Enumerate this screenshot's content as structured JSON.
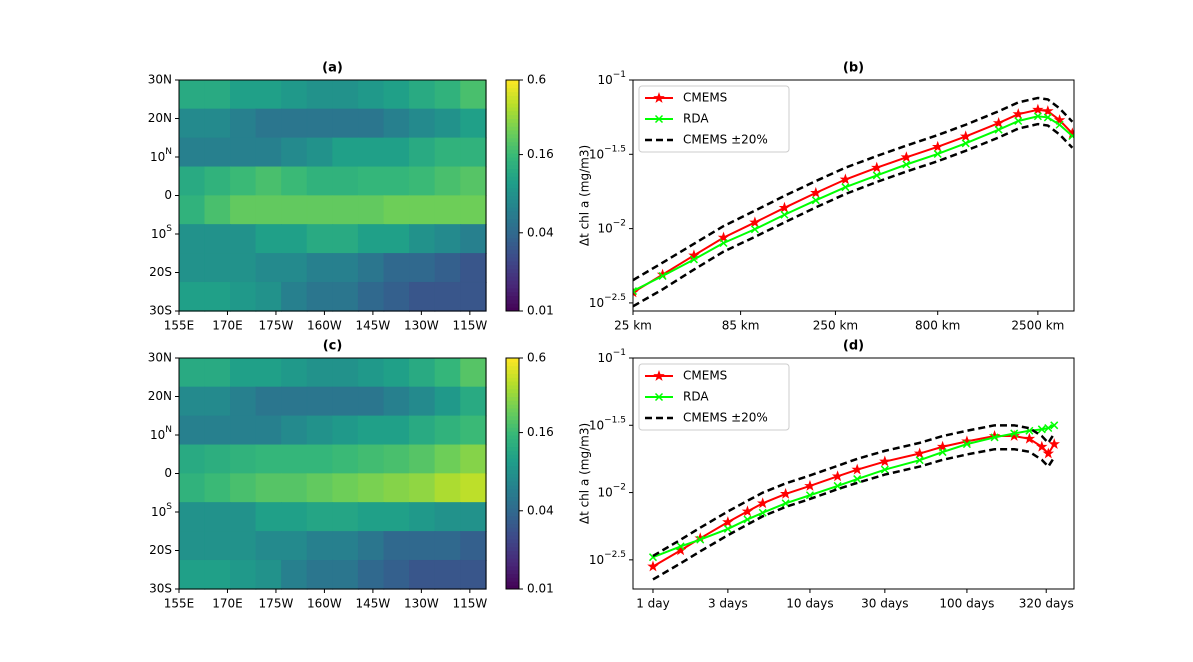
{
  "chart_data": [
    {
      "type": "heatmap",
      "title": "(a)",
      "xlim": [
        155,
        250
      ],
      "xticks": [
        {
          "value": 155,
          "label": "155E"
        },
        {
          "value": 170,
          "label": "170E"
        },
        {
          "value": 185,
          "label": "175W"
        },
        {
          "value": 200,
          "label": "160W"
        },
        {
          "value": 215,
          "label": "145W"
        },
        {
          "value": 230,
          "label": "130W"
        },
        {
          "value": 245,
          "label": "115W"
        }
      ],
      "ylim": [
        -30,
        30
      ],
      "yticks": [
        {
          "value": -30,
          "label": "30S"
        },
        {
          "value": -20,
          "label": "20S"
        },
        {
          "value": -10,
          "label": "10S"
        },
        0,
        {
          "value": 10,
          "label": "10N"
        },
        {
          "value": 20,
          "label": "20N"
        },
        {
          "value": 30,
          "label": "30N"
        }
      ],
      "colormap": "viridis",
      "clog": true,
      "clim": [
        0.01,
        0.6
      ],
      "cticks": [
        0.01,
        0.04,
        0.16,
        0.6
      ],
      "z": [
        [
          0.12,
          0.12,
          0.1,
          0.1,
          0.09,
          0.08,
          0.08,
          0.09,
          0.1,
          0.12,
          0.14,
          0.18
        ],
        [
          0.07,
          0.07,
          0.06,
          0.05,
          0.05,
          0.05,
          0.05,
          0.05,
          0.06,
          0.07,
          0.08,
          0.1
        ],
        [
          0.06,
          0.06,
          0.06,
          0.06,
          0.07,
          0.08,
          0.1,
          0.1,
          0.1,
          0.12,
          0.14,
          0.14
        ],
        [
          0.12,
          0.14,
          0.16,
          0.18,
          0.16,
          0.14,
          0.14,
          0.15,
          0.15,
          0.16,
          0.18,
          0.2
        ],
        [
          0.14,
          0.18,
          0.22,
          0.22,
          0.22,
          0.22,
          0.22,
          0.22,
          0.24,
          0.24,
          0.24,
          0.24
        ],
        [
          0.08,
          0.08,
          0.08,
          0.1,
          0.1,
          0.12,
          0.12,
          0.1,
          0.1,
          0.08,
          0.07,
          0.06
        ],
        [
          0.08,
          0.08,
          0.08,
          0.07,
          0.07,
          0.06,
          0.06,
          0.05,
          0.04,
          0.04,
          0.035,
          0.03
        ],
        [
          0.1,
          0.1,
          0.09,
          0.08,
          0.06,
          0.05,
          0.05,
          0.04,
          0.035,
          0.03,
          0.03,
          0.03
        ]
      ]
    },
    {
      "type": "line",
      "title": "(b)",
      "ylabel": "Δt chl a (mg/m3)",
      "xlog": true,
      "ylog": true,
      "legend": "upper left",
      "xlim": [
        25,
        3770
      ],
      "xticks": [
        {
          "value": 25,
          "label": "25 km"
        },
        {
          "value": 85,
          "label": "85 km"
        },
        {
          "value": 250,
          "label": "250 km"
        },
        {
          "value": 800,
          "label": "800 km"
        },
        {
          "value": 2500,
          "label": "2500 km"
        }
      ],
      "ylim": [
        0.00279,
        0.1
      ],
      "yticks": [
        {
          "value": 0.1,
          "label": "10−1"
        },
        {
          "value": 0.031623,
          "label": "10−1.5"
        },
        {
          "value": 0.01,
          "label": "10−2"
        },
        {
          "value": 0.0031623,
          "label": "10−2.5"
        }
      ],
      "x": [
        25,
        35,
        50,
        70,
        100,
        140,
        200,
        280,
        400,
        560,
        800,
        1100,
        1600,
        2000,
        2500,
        2800,
        3200,
        3700
      ],
      "series": [
        {
          "name": "CMEMS",
          "color": "#ff0000",
          "marker": "star",
          "values": [
            0.00372,
            0.0049,
            0.0066,
            0.0087,
            0.011,
            0.0138,
            0.0174,
            0.0214,
            0.0257,
            0.0302,
            0.0355,
            0.0417,
            0.0513,
            0.0589,
            0.0631,
            0.0617,
            0.0537,
            0.0437
          ]
        },
        {
          "name": "RDA",
          "color": "#00ff00",
          "marker": "x",
          "values": [
            0.0038,
            0.0048,
            0.0062,
            0.008,
            0.0099,
            0.0124,
            0.0155,
            0.019,
            0.0228,
            0.027,
            0.0318,
            0.0375,
            0.0463,
            0.053,
            0.057,
            0.056,
            0.05,
            0.042
          ]
        },
        {
          "name": "CMEMS ±20%",
          "color": "#000000",
          "dash": true,
          "upper": [
            0.0045,
            0.0059,
            0.0079,
            0.0104,
            0.0132,
            0.0166,
            0.0209,
            0.0257,
            0.0308,
            0.0362,
            0.0426,
            0.05,
            0.0616,
            0.0707,
            0.0757,
            0.074,
            0.0644,
            0.0524
          ],
          "lower": [
            0.003,
            0.0039,
            0.0053,
            0.007,
            0.0088,
            0.011,
            0.0139,
            0.0171,
            0.0206,
            0.0242,
            0.0284,
            0.0334,
            0.041,
            0.0471,
            0.0505,
            0.0494,
            0.043,
            0.035
          ]
        }
      ]
    },
    {
      "type": "heatmap",
      "title": "(c)",
      "xlim": [
        155,
        250
      ],
      "xticks": [
        {
          "value": 155,
          "label": "155E"
        },
        {
          "value": 170,
          "label": "170E"
        },
        {
          "value": 185,
          "label": "175W"
        },
        {
          "value": 200,
          "label": "160W"
        },
        {
          "value": 215,
          "label": "145W"
        },
        {
          "value": 230,
          "label": "130W"
        },
        {
          "value": 245,
          "label": "115W"
        }
      ],
      "ylim": [
        -30,
        30
      ],
      "yticks": [
        {
          "value": -30,
          "label": "30S"
        },
        {
          "value": -20,
          "label": "20S"
        },
        {
          "value": -10,
          "label": "10S"
        },
        0,
        {
          "value": 10,
          "label": "10N"
        },
        {
          "value": 20,
          "label": "20N"
        },
        {
          "value": 30,
          "label": "30N"
        }
      ],
      "colormap": "viridis",
      "clog": true,
      "clim": [
        0.01,
        0.6
      ],
      "cticks": [
        0.01,
        0.04,
        0.16,
        0.6
      ],
      "z": [
        [
          0.12,
          0.12,
          0.1,
          0.1,
          0.09,
          0.08,
          0.08,
          0.09,
          0.1,
          0.12,
          0.15,
          0.2
        ],
        [
          0.07,
          0.07,
          0.06,
          0.05,
          0.05,
          0.05,
          0.05,
          0.05,
          0.06,
          0.07,
          0.09,
          0.12
        ],
        [
          0.06,
          0.06,
          0.06,
          0.06,
          0.07,
          0.08,
          0.09,
          0.1,
          0.1,
          0.12,
          0.14,
          0.16
        ],
        [
          0.12,
          0.13,
          0.14,
          0.15,
          0.15,
          0.15,
          0.16,
          0.17,
          0.18,
          0.2,
          0.24,
          0.28
        ],
        [
          0.14,
          0.16,
          0.18,
          0.2,
          0.2,
          0.22,
          0.24,
          0.26,
          0.28,
          0.3,
          0.36,
          0.4
        ],
        [
          0.08,
          0.08,
          0.08,
          0.1,
          0.1,
          0.11,
          0.11,
          0.1,
          0.1,
          0.09,
          0.08,
          0.08
        ],
        [
          0.08,
          0.08,
          0.08,
          0.07,
          0.07,
          0.06,
          0.06,
          0.05,
          0.04,
          0.04,
          0.04,
          0.035
        ],
        [
          0.1,
          0.1,
          0.09,
          0.08,
          0.06,
          0.05,
          0.05,
          0.04,
          0.035,
          0.03,
          0.03,
          0.03
        ]
      ]
    },
    {
      "type": "line",
      "title": "(d)",
      "ylabel": "Δt chl a (mg/m3)",
      "xlog": true,
      "ylog": true,
      "legend": "upper left",
      "xlim": [
        0.746,
        481
      ],
      "xticks": [
        {
          "value": 1,
          "label": "1 day"
        },
        {
          "value": 3,
          "label": "3 days"
        },
        {
          "value": 10,
          "label": "10 days"
        },
        {
          "value": 30,
          "label": "30 days"
        },
        {
          "value": 100,
          "label": "100 days"
        },
        {
          "value": 320,
          "label": "320 days"
        }
      ],
      "ylim": [
        0.00192,
        0.1
      ],
      "yticks": [
        {
          "value": 0.1,
          "label": "10−1"
        },
        {
          "value": 0.031623,
          "label": "10−1.5"
        },
        {
          "value": 0.01,
          "label": "10−2"
        },
        {
          "value": 0.0031623,
          "label": "10−2.5"
        }
      ],
      "x": [
        1,
        1.5,
        2,
        3,
        4,
        5,
        7,
        10,
        15,
        20,
        30,
        50,
        70,
        100,
        150,
        200,
        250,
        300,
        330,
        360
      ],
      "series": [
        {
          "name": "CMEMS",
          "color": "#ff0000",
          "marker": "star",
          "values": [
            0.00282,
            0.00372,
            0.00457,
            0.00603,
            0.00724,
            0.00832,
            0.00977,
            0.0112,
            0.0132,
            0.0148,
            0.017,
            0.0195,
            0.0219,
            0.024,
            0.0263,
            0.0263,
            0.0251,
            0.0219,
            0.0195,
            0.0229
          ]
        },
        {
          "name": "RDA",
          "color": "#00ff00",
          "marker": "x",
          "values": [
            0.00331,
            0.00398,
            0.00447,
            0.00537,
            0.00631,
            0.00708,
            0.00832,
            0.00955,
            0.0112,
            0.0126,
            0.0148,
            0.0174,
            0.02,
            0.0229,
            0.0257,
            0.0275,
            0.0288,
            0.0295,
            0.0302,
            0.0316
          ]
        },
        {
          "name": "CMEMS ±20%",
          "color": "#000000",
          "dash": true,
          "upper": [
            0.00338,
            0.00446,
            0.00548,
            0.00724,
            0.00869,
            0.00998,
            0.0117,
            0.0134,
            0.0158,
            0.0178,
            0.0204,
            0.0234,
            0.0263,
            0.0288,
            0.0316,
            0.0316,
            0.0301,
            0.0263,
            0.0234,
            0.0275
          ],
          "lower": [
            0.00226,
            0.00298,
            0.00366,
            0.00482,
            0.00579,
            0.00666,
            0.00782,
            0.00896,
            0.0106,
            0.0118,
            0.0136,
            0.0156,
            0.0175,
            0.0192,
            0.021,
            0.021,
            0.0201,
            0.0175,
            0.0156,
            0.0183
          ]
        }
      ]
    }
  ]
}
